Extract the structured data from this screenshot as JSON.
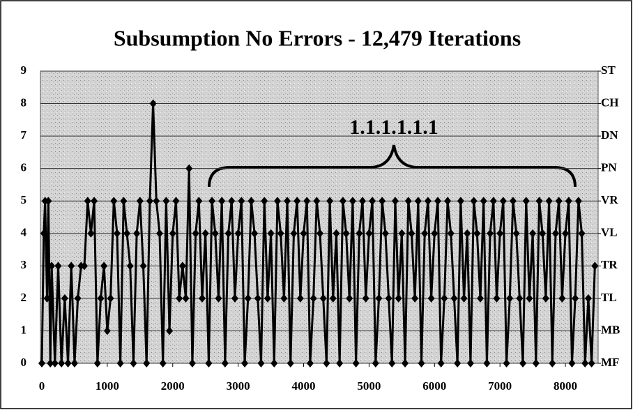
{
  "chart_data": {
    "type": "line",
    "title": "Subsumption No Errors - 12,479 Iterations",
    "annotation": "1.1.1.1.1.1",
    "x": [
      0,
      30,
      50,
      80,
      100,
      130,
      150,
      200,
      250,
      300,
      350,
      400,
      450,
      500,
      550,
      600,
      650,
      700,
      750,
      800,
      850,
      900,
      950,
      1000,
      1050,
      1100,
      1150,
      1200,
      1250,
      1300,
      1350,
      1400,
      1450,
      1500,
      1550,
      1600,
      1650,
      1700,
      1750,
      1800,
      1850,
      1900,
      1950,
      2000,
      2050,
      2100,
      2150,
      2200,
      2250,
      2300,
      2350,
      2400,
      2450,
      2500,
      2550,
      2600,
      2650,
      2700,
      2750,
      2800,
      2850,
      2900,
      2950,
      3000,
      3050,
      3100,
      3150,
      3200,
      3250,
      3300,
      3350,
      3400,
      3450,
      3500,
      3550,
      3600,
      3650,
      3700,
      3750,
      3800,
      3850,
      3900,
      3950,
      4000,
      4050,
      4100,
      4150,
      4200,
      4250,
      4300,
      4350,
      4400,
      4450,
      4500,
      4550,
      4600,
      4650,
      4700,
      4750,
      4800,
      4850,
      4900,
      4950,
      5000,
      5050,
      5100,
      5150,
      5200,
      5250,
      5300,
      5350,
      5400,
      5450,
      5500,
      5550,
      5600,
      5650,
      5700,
      5750,
      5800,
      5850,
      5900,
      5950,
      6000,
      6050,
      6100,
      6150,
      6200,
      6250,
      6300,
      6350,
      6400,
      6450,
      6500,
      6550,
      6600,
      6650,
      6700,
      6750,
      6800,
      6850,
      6900,
      6950,
      7000,
      7050,
      7100,
      7150,
      7200,
      7250,
      7300,
      7350,
      7400,
      7450,
      7500,
      7550,
      7600,
      7650,
      7700,
      7750,
      7800,
      7850,
      7900,
      7950,
      8000,
      8050,
      8100,
      8150,
      8200,
      8250,
      8300,
      8350,
      8400,
      8450
    ],
    "series": [
      {
        "name": "Subsumption",
        "color": "#000000",
        "values": [
          0,
          4,
          5,
          2,
          5,
          0,
          3,
          0,
          3,
          0,
          2,
          0,
          3,
          0,
          2,
          3,
          3,
          5,
          4,
          5,
          0,
          2,
          3,
          1,
          2,
          5,
          4,
          0,
          5,
          4,
          3,
          0,
          4,
          5,
          3,
          0,
          5,
          8,
          5,
          4,
          0,
          5,
          1,
          4,
          5,
          2,
          3,
          2,
          6,
          0,
          4,
          5,
          2,
          4,
          0,
          5,
          4,
          2,
          5,
          0,
          4,
          5,
          2,
          4,
          5,
          0,
          2,
          5,
          4,
          2,
          0,
          5,
          2,
          4,
          0,
          5,
          4,
          2,
          5,
          0,
          4,
          5,
          2,
          4,
          5,
          0,
          2,
          5,
          4,
          2,
          0,
          5,
          2,
          4,
          0,
          5,
          4,
          2,
          5,
          0,
          4,
          5,
          2,
          4,
          5,
          0,
          2,
          5,
          4,
          2,
          0,
          5,
          2,
          4,
          0,
          5,
          4,
          2,
          5,
          0,
          4,
          5,
          2,
          4,
          5,
          0,
          2,
          5,
          4,
          2,
          0,
          5,
          2,
          4,
          0,
          5,
          4,
          2,
          5,
          0,
          4,
          5,
          2,
          4,
          5,
          0,
          2,
          5,
          4,
          2,
          0,
          5,
          2,
          4,
          0,
          5,
          4,
          2,
          5,
          0,
          4,
          5,
          2,
          4,
          5,
          0,
          2,
          5,
          4,
          0,
          2,
          0,
          3
        ]
      }
    ],
    "xlim": [
      0,
      8500
    ],
    "xticks": [
      0,
      1000,
      2000,
      3000,
      4000,
      5000,
      6000,
      7000,
      8000
    ],
    "ylim": [
      0,
      9
    ],
    "yticks": [
      0,
      1,
      2,
      3,
      4,
      5,
      6,
      7,
      8,
      9
    ],
    "y2lim": [
      0,
      9
    ],
    "y2ticks": [
      {
        "value": 0,
        "label": "MF"
      },
      {
        "value": 1,
        "label": "MB"
      },
      {
        "value": 2,
        "label": "TL"
      },
      {
        "value": 3,
        "label": "TR"
      },
      {
        "value": 4,
        "label": "VL"
      },
      {
        "value": 5,
        "label": "VR"
      },
      {
        "value": 6,
        "label": "PN"
      },
      {
        "value": 7,
        "label": "DN"
      },
      {
        "value": 8,
        "label": "CH"
      },
      {
        "value": 9,
        "label": "ST"
      }
    ],
    "grid": true
  }
}
